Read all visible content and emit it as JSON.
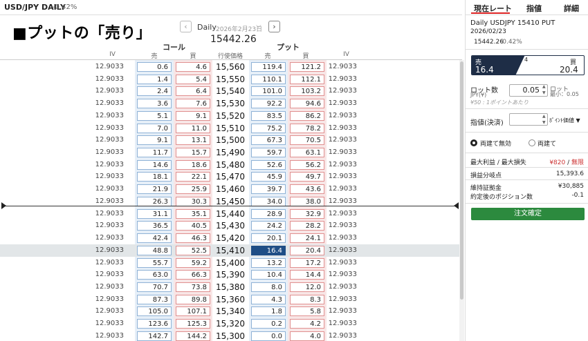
{
  "header": {
    "pair": "USD/JPY DAILY",
    "change_pct": "-0.42%"
  },
  "overlay_title": "■プットの「売り」",
  "nav": {
    "prev": "‹",
    "next": "›",
    "frequency": "Daily",
    "date": "2026年2月23日",
    "chevron": "⌵",
    "spot": "15442.26"
  },
  "board_headers": {
    "call": "コール",
    "put": "プット",
    "iv": "IV",
    "sell": "売",
    "buy": "買",
    "strike": "行使価格"
  },
  "rows": [
    {
      "civ": "12.9033",
      "cs": "0.6",
      "cb": "4.6",
      "k": "15,560",
      "ps": "119.4",
      "pb": "121.2",
      "piv": "12.9033"
    },
    {
      "civ": "12.9033",
      "cs": "1.4",
      "cb": "5.4",
      "k": "15,550",
      "ps": "110.1",
      "pb": "112.1",
      "piv": "12.9033"
    },
    {
      "civ": "12.9033",
      "cs": "2.4",
      "cb": "6.4",
      "k": "15,540",
      "ps": "101.0",
      "pb": "103.2",
      "piv": "12.9033"
    },
    {
      "civ": "12.9033",
      "cs": "3.6",
      "cb": "7.6",
      "k": "15,530",
      "ps": "92.2",
      "pb": "94.6",
      "piv": "12.9033"
    },
    {
      "civ": "12.9033",
      "cs": "5.1",
      "cb": "9.1",
      "k": "15,520",
      "ps": "83.5",
      "pb": "86.2",
      "piv": "12.9033"
    },
    {
      "civ": "12.9033",
      "cs": "7.0",
      "cb": "11.0",
      "k": "15,510",
      "ps": "75.2",
      "pb": "78.2",
      "piv": "12.9033"
    },
    {
      "civ": "12.9033",
      "cs": "9.1",
      "cb": "13.1",
      "k": "15,500",
      "ps": "67.3",
      "pb": "70.5",
      "piv": "12.9033"
    },
    {
      "civ": "12.9033",
      "cs": "11.7",
      "cb": "15.7",
      "k": "15,490",
      "ps": "59.7",
      "pb": "63.1",
      "piv": "12.9033"
    },
    {
      "civ": "12.9033",
      "cs": "14.6",
      "cb": "18.6",
      "k": "15,480",
      "ps": "52.6",
      "pb": "56.2",
      "piv": "12.9033"
    },
    {
      "civ": "12.9033",
      "cs": "18.1",
      "cb": "22.1",
      "k": "15,470",
      "ps": "45.9",
      "pb": "49.7",
      "piv": "12.9033"
    },
    {
      "civ": "12.9033",
      "cs": "21.9",
      "cb": "25.9",
      "k": "15,460",
      "ps": "39.7",
      "pb": "43.6",
      "piv": "12.9033"
    },
    {
      "civ": "12.9033",
      "cs": "26.3",
      "cb": "30.3",
      "k": "15,450",
      "ps": "34.0",
      "pb": "38.0",
      "piv": "12.9033"
    },
    {
      "civ": "12.9033",
      "cs": "31.1",
      "cb": "35.1",
      "k": "15,440",
      "ps": "28.9",
      "pb": "32.9",
      "piv": "12.9033"
    },
    {
      "civ": "12.9033",
      "cs": "36.5",
      "cb": "40.5",
      "k": "15,430",
      "ps": "24.2",
      "pb": "28.2",
      "piv": "12.9033"
    },
    {
      "civ": "12.9033",
      "cs": "42.4",
      "cb": "46.3",
      "k": "15,420",
      "ps": "20.1",
      "pb": "24.1",
      "piv": "12.9033"
    },
    {
      "civ": "12.9033",
      "cs": "48.8",
      "cb": "52.5",
      "k": "15,410",
      "ps": "16.4",
      "pb": "20.4",
      "piv": "12.9033",
      "selected": true
    },
    {
      "civ": "12.9033",
      "cs": "55.7",
      "cb": "59.2",
      "k": "15,400",
      "ps": "13.2",
      "pb": "17.2",
      "piv": "12.9033"
    },
    {
      "civ": "12.9033",
      "cs": "63.0",
      "cb": "66.3",
      "k": "15,390",
      "ps": "10.4",
      "pb": "14.4",
      "piv": "12.9033"
    },
    {
      "civ": "12.9033",
      "cs": "70.7",
      "cb": "73.8",
      "k": "15,380",
      "ps": "8.0",
      "pb": "12.0",
      "piv": "12.9033"
    },
    {
      "civ": "12.9033",
      "cs": "87.3",
      "cb": "89.8",
      "k": "15,360",
      "ps": "4.3",
      "pb": "8.3",
      "piv": "12.9033"
    },
    {
      "civ": "12.9033",
      "cs": "105.0",
      "cb": "107.1",
      "k": "15,340",
      "ps": "1.8",
      "pb": "5.8",
      "piv": "12.9033"
    },
    {
      "civ": "12.9033",
      "cs": "123.6",
      "cb": "125.3",
      "k": "15,320",
      "ps": "0.2",
      "pb": "4.2",
      "piv": "12.9033"
    },
    {
      "civ": "12.9033",
      "cs": "142.7",
      "cb": "144.2",
      "k": "15,300",
      "ps": "0.0",
      "pb": "4.0",
      "piv": "12.9033"
    }
  ],
  "panel": {
    "tabs": [
      "現在レート",
      "指値",
      "詳細"
    ],
    "title": "Daily USDJPY 15410 PUT",
    "date": "2026/02/23",
    "spot": "15442.26",
    "change_pct": "-0.42%",
    "quote": {
      "sell_label": "売",
      "sell_value": "16.4",
      "spread": "4",
      "buy_label": "買",
      "buy_value": "20.4"
    },
    "lot": {
      "label": "ロット数",
      "unit": "JPY(¥)",
      "value": "0.05",
      "lot_unit": "ロット",
      "min": "最小：0.05",
      "note": "¥50 : 1ポイントあたり"
    },
    "order": {
      "label": "指値(決済)",
      "type": "ﾎﾟｲﾝﾄ価値"
    },
    "radio": {
      "opt1": "両建て無効",
      "opt2": "両建て"
    },
    "max_pl_label": "最大利益 / 最大損失",
    "max_profit": "¥820",
    "max_loss": "無限",
    "breakeven_label": "損益分岐点",
    "breakeven_value": "15,393.6",
    "margin_label": "維持証拠金",
    "margin_value": "¥30,885",
    "position_label": "約定後のポジション数",
    "position_value": "-0.1",
    "confirm_label": "注文確定"
  },
  "colors": {
    "accent": "#1f4e86",
    "confirm": "#2c8a3e",
    "tab_underline": "#dd2222"
  }
}
